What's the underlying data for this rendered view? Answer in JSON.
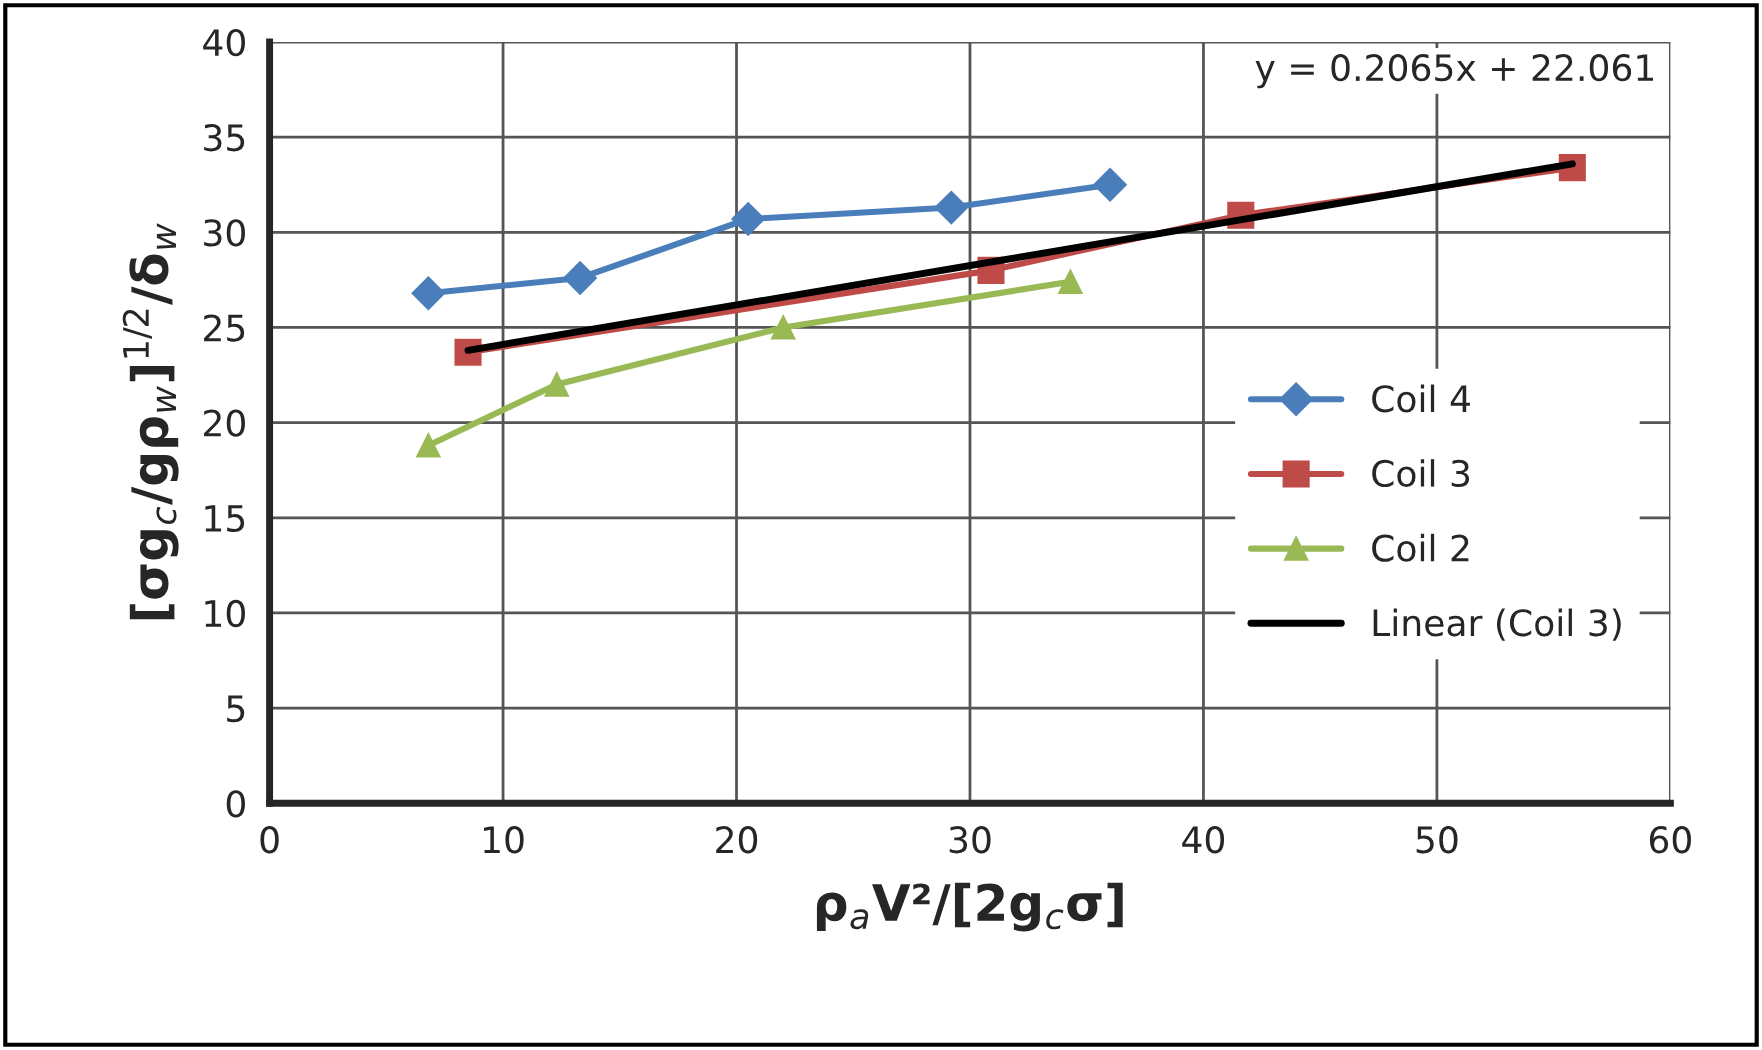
{
  "chart_data": {
    "type": "line",
    "xlabel": "ρ$_{a}$V²/[2g$_{c}$σ]",
    "ylabel": "[σg$_{c}$/gρ$_{w}$]$^{1/2}$/δ$_{w}$",
    "series": [
      {
        "name": "Coil 4",
        "color": "#4a7ebb",
        "marker": "diamond",
        "x": [
          6.8,
          13.3,
          20.5,
          29.2,
          36.0
        ],
        "values": [
          26.8,
          27.6,
          30.7,
          31.3,
          32.5
        ]
      },
      {
        "name": "Coil 3",
        "color": "#be4b48",
        "marker": "square",
        "x": [
          8.5,
          30.9,
          41.6,
          55.8
        ],
        "values": [
          23.7,
          28.0,
          30.9,
          33.4
        ]
      },
      {
        "name": "Coil 2",
        "color": "#98b954",
        "marker": "triangle",
        "x": [
          6.8,
          12.3,
          22.0,
          34.3
        ],
        "values": [
          18.8,
          22.0,
          25.0,
          27.4
        ]
      },
      {
        "name": "Linear (Coil 3)",
        "color": "#000000",
        "marker": "none",
        "x": [
          8.5,
          55.8
        ],
        "values": [
          23.8,
          33.6
        ]
      }
    ],
    "annotations": [
      "y = 0.2065x + 22.061"
    ],
    "xlim": [
      0,
      60
    ],
    "xticks": [
      0,
      10,
      20,
      30,
      40,
      50,
      60
    ],
    "ylim": [
      0,
      40
    ],
    "yticks": [
      0,
      5,
      10,
      15,
      20,
      25,
      30,
      35,
      40
    ],
    "grid": true,
    "legend": "right"
  }
}
